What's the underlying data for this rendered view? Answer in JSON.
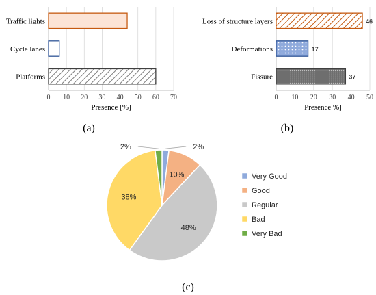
{
  "chart_data": [
    {
      "panel": "a",
      "caption": "(a)",
      "type": "bar",
      "orientation": "horizontal",
      "categories": [
        "Traffic lights",
        "Cycle lanes",
        "Platforms"
      ],
      "values": [
        44,
        6,
        60
      ],
      "xlabel": "Presence [%]",
      "xlim": [
        0,
        70
      ],
      "xticks": [
        0,
        10,
        20,
        30,
        40,
        50,
        60,
        70
      ],
      "grid": true,
      "colors": [
        {
          "fill": "#fce4d6",
          "stroke": "#c55a11",
          "pattern": "none"
        },
        {
          "fill": "#ffffff",
          "stroke": "#2f5597",
          "pattern": "none"
        },
        {
          "fill": "#ffffff",
          "stroke": "#404040",
          "pattern": "diagonal-hatch"
        }
      ]
    },
    {
      "panel": "b",
      "caption": "(b)",
      "type": "bar",
      "orientation": "horizontal",
      "categories": [
        "Loss of structure layers",
        "Deformations",
        "Fissure"
      ],
      "values": [
        46,
        17,
        37
      ],
      "data_labels": [
        "46",
        "17",
        "37"
      ],
      "xlabel": "Presence %]",
      "xlim": [
        0,
        50
      ],
      "xticks": [
        0,
        10,
        20,
        30,
        40,
        50
      ],
      "grid": true,
      "colors": [
        {
          "fill": "#ffffff",
          "stroke": "#c55a11",
          "pattern": "diagonal-hatch-orange"
        },
        {
          "fill": "#8faadc",
          "stroke": "#2f5597",
          "pattern": "dots"
        },
        {
          "fill": "#808080",
          "stroke": "#404040",
          "pattern": "dense-dots"
        }
      ]
    },
    {
      "panel": "c",
      "caption": "(c)",
      "type": "pie",
      "labels": [
        "Very Good",
        "Good",
        "Regular",
        "Bad",
        "Very Bad"
      ],
      "values": [
        2,
        10,
        48,
        38,
        2
      ],
      "data_labels": [
        "2%",
        "10%",
        "48%",
        "38%",
        "2%"
      ],
      "colors": [
        "#8faadc",
        "#f4b183",
        "#c9c9c9",
        "#ffd966",
        "#70ad47"
      ],
      "legend": "right"
    }
  ]
}
